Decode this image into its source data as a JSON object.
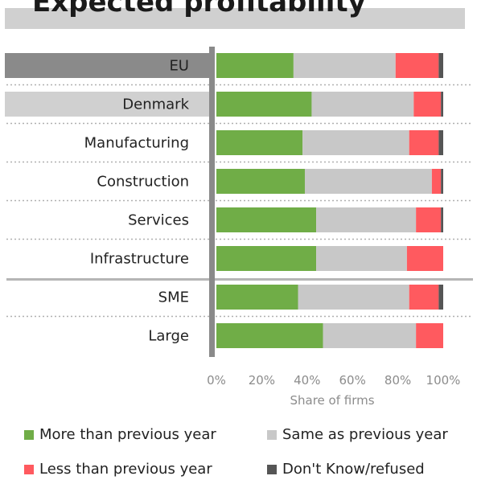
{
  "header": {
    "title": "Expected profitability"
  },
  "chart_data": {
    "type": "bar",
    "orientation": "horizontal",
    "stacked": true,
    "categories": [
      "EU",
      "Denmark",
      "Manufacturing",
      "Construction",
      "Services",
      "Infrastructure",
      "SME",
      "Large"
    ],
    "series": [
      {
        "name": "More than previous year",
        "color": "#70ad47",
        "values": [
          34,
          42,
          38,
          39,
          44,
          44,
          36,
          47
        ]
      },
      {
        "name": "Same as previous year",
        "color": "#c8c8c8",
        "values": [
          45,
          45,
          47,
          56,
          44,
          40,
          49,
          41
        ]
      },
      {
        "name": "Less than previous year",
        "color": "#ff5a5f",
        "values": [
          19,
          12,
          13,
          4,
          11,
          16,
          13,
          12
        ]
      },
      {
        "name": "Don't Know/refused",
        "color": "#555555",
        "values": [
          2,
          1,
          2,
          1,
          1,
          0,
          2,
          0
        ]
      }
    ],
    "x_ticks": [
      "0%",
      "20%",
      "40%",
      "60%",
      "80%",
      "100%"
    ],
    "xlabel": "Share of firms",
    "xlim": [
      0,
      100
    ],
    "highlight": {
      "EU": "#8a8a8a",
      "Denmark": "#d0d0d0"
    },
    "legend": "bottom"
  }
}
